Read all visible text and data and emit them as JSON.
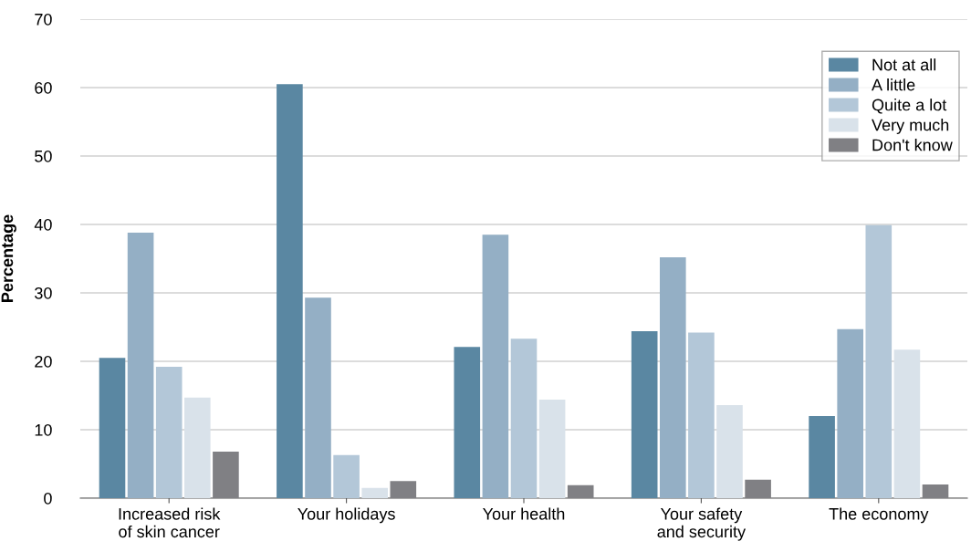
{
  "chart_data": {
    "type": "bar",
    "ylabel": "Percentage",
    "categories": [
      "Increased risk\nof skin cancer",
      "Your holidays",
      "Your health",
      "Your safety\nand security",
      "The economy"
    ],
    "series": [
      {
        "name": "Not at all",
        "color": "#5a87a2",
        "values": [
          20.5,
          60.5,
          22.1,
          24.4,
          12.0
        ]
      },
      {
        "name": "A little",
        "color": "#94afc5",
        "values": [
          38.8,
          29.3,
          38.5,
          35.2,
          24.7
        ]
      },
      {
        "name": "Quite a lot",
        "color": "#b3c7d8",
        "values": [
          19.2,
          6.3,
          23.3,
          24.2,
          39.9
        ]
      },
      {
        "name": "Very much",
        "color": "#d9e2ea",
        "values": [
          14.7,
          1.5,
          14.4,
          13.6,
          21.7
        ]
      },
      {
        "name": "Don't know",
        "color": "#808084",
        "values": [
          6.8,
          2.5,
          1.9,
          2.7,
          2.0
        ]
      }
    ],
    "ylim": [
      0,
      70
    ],
    "yticks": [
      0,
      10,
      20,
      30,
      40,
      50,
      60,
      70
    ],
    "grid": "y",
    "legend": "top right"
  }
}
